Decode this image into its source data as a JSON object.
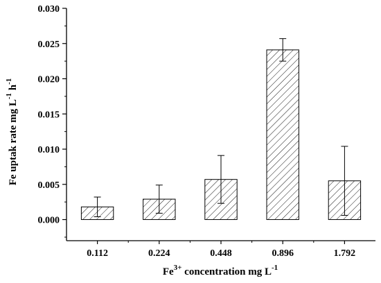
{
  "chart_data": {
    "type": "bar",
    "title": "",
    "categories": [
      "0.112",
      "0.224",
      "0.448",
      "0.896",
      "1.792"
    ],
    "values": [
      0.0018,
      0.0029,
      0.0057,
      0.0241,
      0.0055
    ],
    "errors": [
      0.0014,
      0.002,
      0.0034,
      0.0016,
      0.0049
    ],
    "ylim": [
      -0.003,
      0.03
    ],
    "yticks": [
      "0.000",
      "0.005",
      "0.010",
      "0.015",
      "0.020",
      "0.025",
      "0.030"
    ],
    "xlabel": {
      "base": "Fe",
      "sup": "3+",
      "rest": " concentration mg L",
      "exp": "-1"
    },
    "ylabel": {
      "text1": "Fe uptak rate mg L",
      "exp1": "-1",
      "text2": " h",
      "exp2": "-1"
    },
    "bar_fill": "hatched",
    "colors": {
      "axis": "#000000",
      "bar_edge": "#000000",
      "hatch": "#000000"
    },
    "grid": false,
    "legend": "none"
  }
}
